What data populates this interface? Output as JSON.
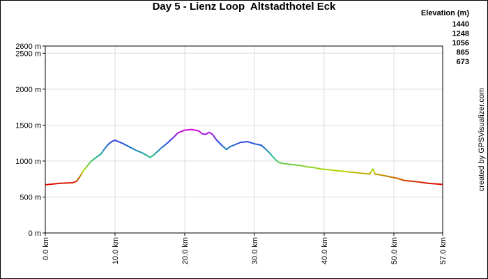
{
  "chart_data": {
    "type": "line",
    "title": "Day 5 - Lienz Loop  Altstadthotel Eck",
    "credit": "created by GPSVisualizer.com",
    "legend": {
      "title": "Elevation (m)",
      "items": [
        {
          "value": 1440,
          "color": "#d400d4"
        },
        {
          "value": 1248,
          "color": "#1f50e0"
        },
        {
          "value": 1056,
          "color": "#1cc08c"
        },
        {
          "value": 865,
          "color": "#b4d800"
        },
        {
          "value": 673,
          "color": "#e00000"
        }
      ]
    },
    "x": [
      0,
      2,
      4,
      4.5,
      5,
      5.5,
      6,
      6.5,
      7,
      8,
      8.5,
      9,
      9.5,
      10,
      10.5,
      11,
      12,
      13,
      14,
      14.7,
      15,
      15.5,
      16.5,
      17.5,
      18.5,
      19,
      20,
      21,
      22,
      22.5,
      23,
      23.5,
      24,
      24.5,
      25.3,
      26,
      26.5,
      27,
      28,
      29,
      30,
      31,
      32,
      33,
      33.5,
      34.5,
      35.5,
      36.5,
      37.5,
      38.5,
      39.5,
      40.5,
      41.5,
      42.5,
      43.5,
      44.5,
      45.5,
      46.5,
      47,
      47.3,
      48.5,
      49.5,
      50.5,
      51.5,
      52.5,
      53.5,
      55,
      57
    ],
    "values": [
      670,
      690,
      700,
      720,
      790,
      870,
      930,
      990,
      1030,
      1100,
      1170,
      1230,
      1270,
      1290,
      1270,
      1250,
      1200,
      1150,
      1110,
      1070,
      1050,
      1080,
      1170,
      1250,
      1340,
      1390,
      1430,
      1440,
      1420,
      1380,
      1370,
      1400,
      1370,
      1300,
      1220,
      1160,
      1200,
      1220,
      1260,
      1270,
      1240,
      1220,
      1130,
      1020,
      980,
      960,
      950,
      940,
      920,
      910,
      890,
      880,
      870,
      860,
      850,
      840,
      830,
      820,
      890,
      820,
      800,
      780,
      760,
      730,
      720,
      710,
      690,
      675
    ],
    "xlim": [
      0,
      57
    ],
    "xticks": [
      {
        "value": 0,
        "label": "0.0 km"
      },
      {
        "value": 10,
        "label": "10.0 km"
      },
      {
        "value": 20,
        "label": "20.0 km"
      },
      {
        "value": 30,
        "label": "30.0 km"
      },
      {
        "value": 40,
        "label": "40.0 km"
      },
      {
        "value": 50,
        "label": "50.0 km"
      },
      {
        "value": 57,
        "label": "57.0 km"
      }
    ],
    "ylim": [
      0,
      2600
    ],
    "yticks": [
      {
        "value": 0,
        "label": "0 m"
      },
      {
        "value": 500,
        "label": "500 m"
      },
      {
        "value": 1000,
        "label": "1000 m"
      },
      {
        "value": 1500,
        "label": "1500 m"
      },
      {
        "value": 2000,
        "label": "2000 m"
      },
      {
        "value": 2500,
        "label": "2500 m"
      },
      {
        "value": 2600,
        "label": "2600 m"
      }
    ],
    "grid": true
  }
}
